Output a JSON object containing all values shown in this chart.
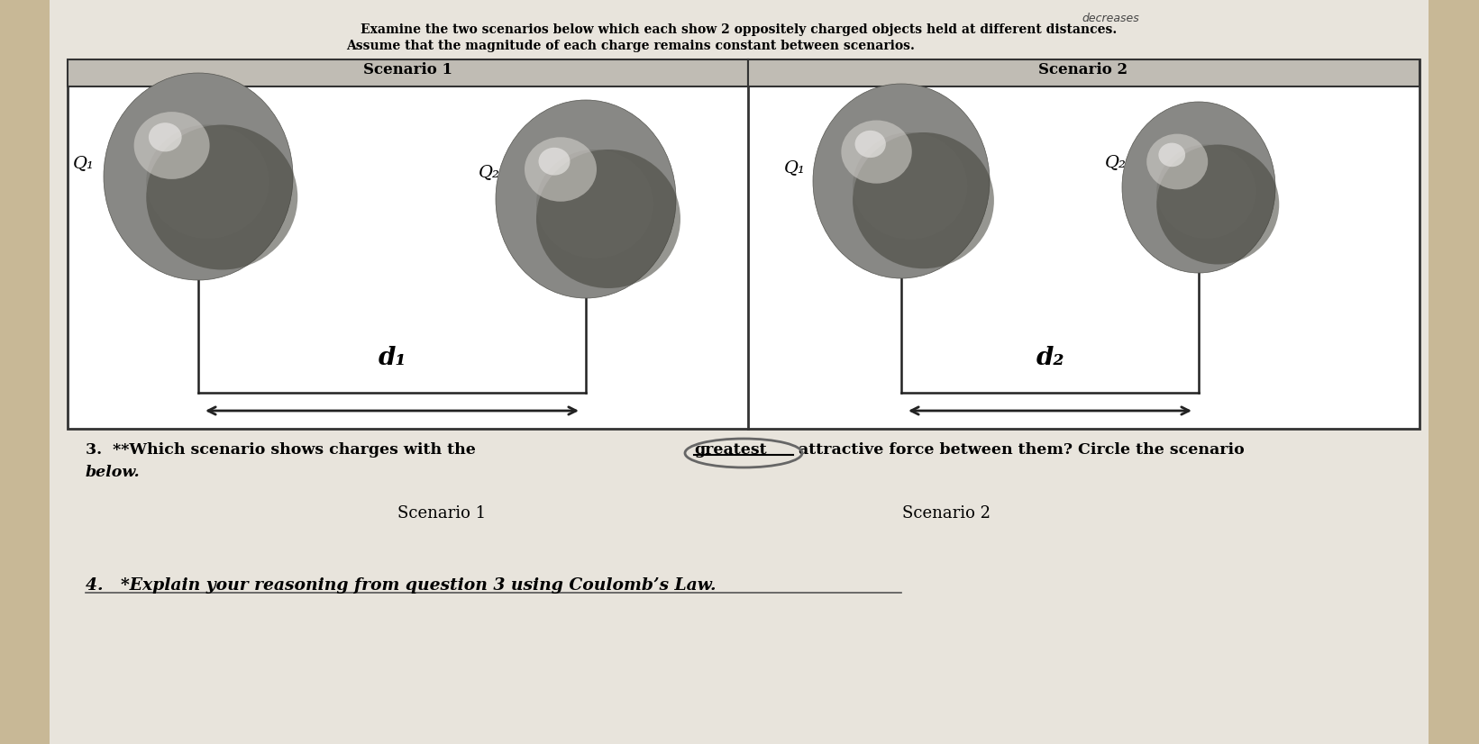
{
  "bg_color": "#c8b896",
  "paper_color": "#e8e4dc",
  "title_line1": "Examine the two scenarios below which each show 2 oppositely charged objects held at different distances.",
  "title_line2": "Assume that the magnitude of each charge remains constant between scenarios.",
  "scenario1_label": "Scenario 1",
  "scenario2_label": "Scenario 2",
  "q1_label": "Q₁",
  "q2_label": "Q₂",
  "d1_label": "d₁",
  "d2_label": "d₂",
  "scenario1_choice": "Scenario 1",
  "scenario2_choice": "Scenario 2",
  "q4_text": "4.   *Explain your reasoning from question 3 using Coulomb’s Law.",
  "header_color": "#c0bcb4",
  "box_bg": "#e8e4dc",
  "handwritten": "decreases"
}
